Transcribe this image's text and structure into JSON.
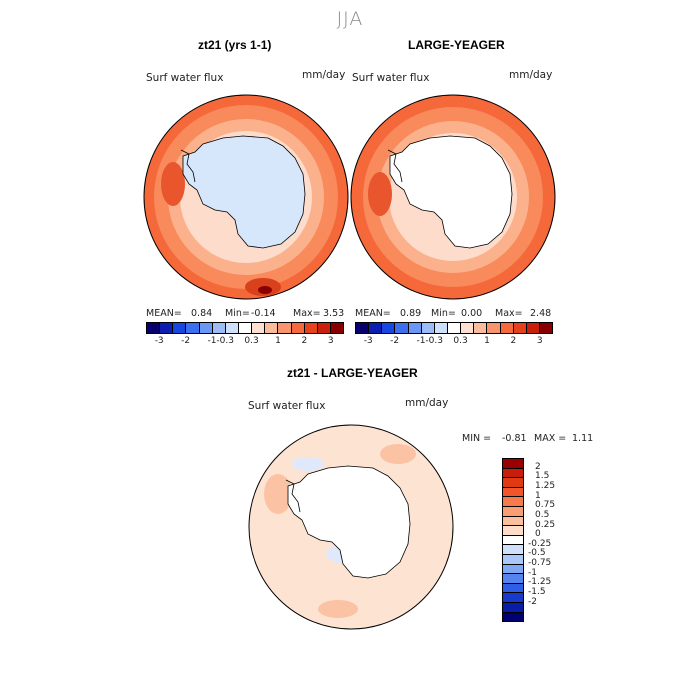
{
  "season": "JJA",
  "panels": {
    "left": {
      "title": "zt21 (yrs 1-1)",
      "field_label": "Surf water flux",
      "units": "mm/day",
      "stats": {
        "mean_label": "MEAN=",
        "mean": "0.84",
        "min_label": "Min=",
        "min": "-0.14",
        "max_label": "Max=",
        "max": "3.53"
      }
    },
    "right": {
      "title": "LARGE-YEAGER",
      "field_label": "Surf water flux",
      "units": "mm/day",
      "stats": {
        "mean_label": "MEAN=",
        "mean": "0.89",
        "min_label": "Min=",
        "min": "0.00",
        "max_label": "Max=",
        "max": "2.48"
      }
    },
    "diff": {
      "title": "zt21 - LARGE-YEAGER",
      "field_label": "Surf water flux",
      "units": "mm/day",
      "stats": {
        "min_label": "MIN =",
        "min": "-0.81",
        "max_label": "MAX =",
        "max": "1.11"
      }
    }
  },
  "small_colorbar": {
    "colors": [
      "#08006e",
      "#0d1fb0",
      "#1746e0",
      "#3c6ff0",
      "#6b98f5",
      "#9cbcf8",
      "#cfe0fb",
      "#ffffff",
      "#fde0cf",
      "#fbbc9c",
      "#f9956e",
      "#f56a3d",
      "#e6401c",
      "#c8200d",
      "#8a0000"
    ],
    "ticks": [
      "-3",
      "-2",
      "-1",
      "-0.3",
      "0.3",
      "1",
      "2",
      "3"
    ]
  },
  "diff_colorbar": {
    "colors": [
      "#9b0000",
      "#c81d0a",
      "#e03a14",
      "#f2552a",
      "#f77a4c",
      "#fa9d72",
      "#fbbf9e",
      "#fddcc8",
      "#ffffff",
      "#cfe0fb",
      "#a9c7f8",
      "#7ea8f4",
      "#5584ef",
      "#2f5ee6",
      "#1739cc",
      "#0a1da5",
      "#000070"
    ],
    "ticks": [
      "2",
      "1.5",
      "1.25",
      "1",
      "0.75",
      "0.5",
      "0.25",
      "0",
      "-0.25",
      "-0.5",
      "-0.75",
      "-1",
      "-1.25",
      "-1.5",
      "-2"
    ]
  }
}
